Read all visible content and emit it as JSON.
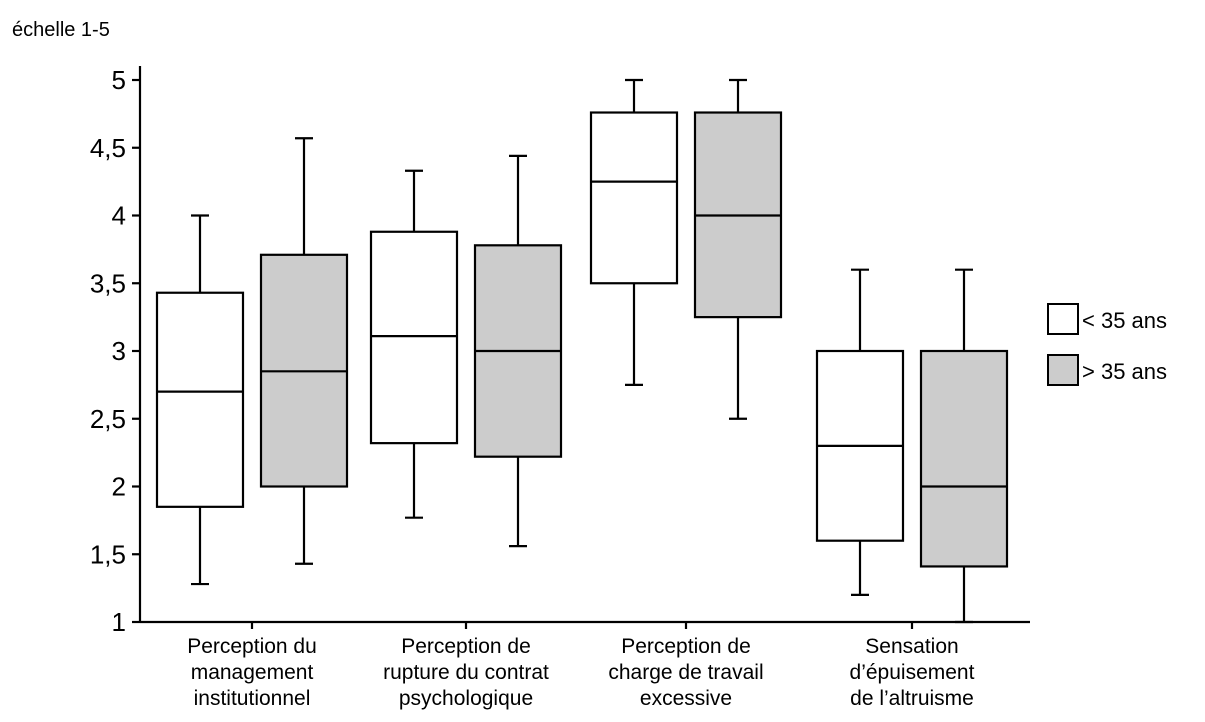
{
  "chart_data": {
    "type": "boxplot",
    "ylabel": "échelle 1-5",
    "ylim": [
      1,
      5
    ],
    "yticks": [
      1,
      1.5,
      2,
      2.5,
      3,
      3.5,
      4,
      4.5,
      5
    ],
    "ytick_labels": [
      "1",
      "1,5",
      "2",
      "2,5",
      "3",
      "3,5",
      "4",
      "4,5",
      "5"
    ],
    "categories": [
      [
        "Perception du",
        "management",
        "institutionnel"
      ],
      [
        "Perception de",
        "rupture du contrat",
        "psychologique"
      ],
      [
        "Perception de",
        "charge de travail",
        "excessive"
      ],
      [
        "Sensation",
        "d’épuisement",
        "de l’altruisme"
      ]
    ],
    "series": [
      {
        "name": "< 35 ans",
        "color": "#ffffff",
        "boxes": [
          {
            "whisker_low": 1.28,
            "q1": 1.85,
            "median": 2.7,
            "q3": 3.43,
            "whisker_high": 4.0
          },
          {
            "whisker_low": 1.77,
            "q1": 2.32,
            "median": 3.11,
            "q3": 3.88,
            "whisker_high": 4.33
          },
          {
            "whisker_low": 2.75,
            "q1": 3.5,
            "median": 4.25,
            "q3": 4.76,
            "whisker_high": 5.0
          },
          {
            "whisker_low": 1.2,
            "q1": 1.6,
            "median": 2.3,
            "q3": 3.0,
            "whisker_high": 3.6
          }
        ]
      },
      {
        "name": "> 35 ans",
        "color": "#cccccc",
        "boxes": [
          {
            "whisker_low": 1.43,
            "q1": 2.0,
            "median": 2.85,
            "q3": 3.71,
            "whisker_high": 4.57
          },
          {
            "whisker_low": 1.56,
            "q1": 2.22,
            "median": 3.0,
            "q3": 3.78,
            "whisker_high": 4.44
          },
          {
            "whisker_low": 2.5,
            "q1": 3.25,
            "median": 4.0,
            "q3": 4.76,
            "whisker_high": 5.0
          },
          {
            "whisker_low": 1.0,
            "q1": 1.41,
            "median": 2.0,
            "q3": 3.0,
            "whisker_high": 3.6
          }
        ]
      }
    ],
    "legend_position": "right",
    "grid": false
  }
}
